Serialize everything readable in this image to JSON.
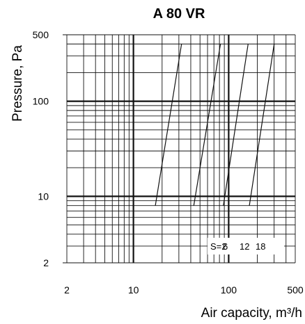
{
  "chart_data": {
    "type": "line",
    "title": "A 80 VR",
    "xlabel": "Air capacity, m³/h",
    "ylabel": "Pressure, Pa",
    "x_scale": "log",
    "y_scale": "log",
    "xlim": [
      2,
      500
    ],
    "ylim": [
      2,
      500
    ],
    "x_ticks": [
      2,
      10,
      100,
      500
    ],
    "y_ticks": [
      2,
      10,
      100,
      500
    ],
    "grid": true,
    "series": [
      {
        "name": "2",
        "points": [
          [
            17,
            8
          ],
          [
            32,
            400
          ]
        ]
      },
      {
        "name": "6",
        "points": [
          [
            43,
            8
          ],
          [
            82,
            400
          ]
        ]
      },
      {
        "name": "12",
        "points": [
          [
            88,
            8
          ],
          [
            160,
            400
          ]
        ]
      },
      {
        "name": "18",
        "points": [
          [
            165,
            8
          ],
          [
            300,
            400
          ]
        ]
      }
    ],
    "series_label_prefix": "S=",
    "colors": {
      "line": "#111111",
      "grid": "#111111",
      "background": "#ffffff"
    }
  }
}
